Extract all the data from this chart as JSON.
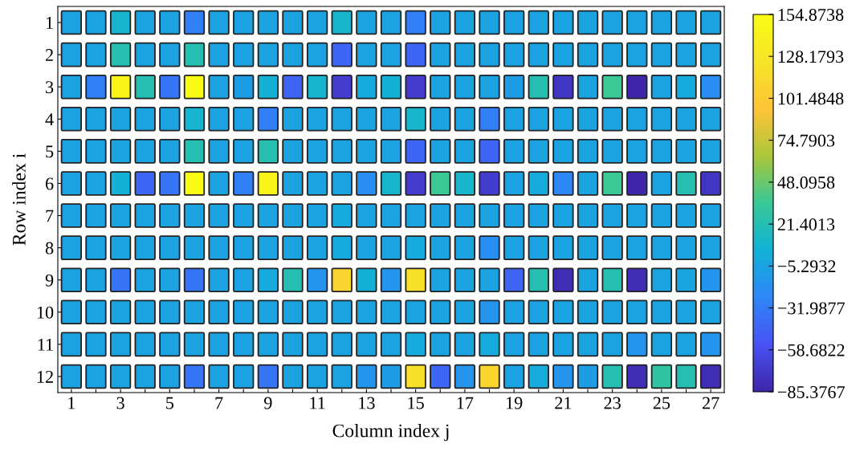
{
  "chart_data": {
    "type": "heatmap",
    "xlabel": "Column index j",
    "ylabel": "Row index i",
    "categories": [
      "1",
      null,
      "3",
      null,
      "5",
      null,
      "7",
      null,
      "9",
      null,
      "11",
      null,
      "13",
      null,
      "15",
      null,
      "17",
      null,
      "19",
      null,
      "21",
      null,
      "23",
      null,
      "25",
      null,
      "27"
    ],
    "y_categories": [
      "1",
      "2",
      "3",
      "4",
      "5",
      "6",
      "7",
      "8",
      "9",
      "10",
      "11",
      "12"
    ],
    "cells": [
      [
        -5,
        -5,
        8,
        -5,
        -5,
        -30,
        -5,
        -5,
        -5,
        -5,
        -5,
        10,
        -5,
        -5,
        -30,
        -5,
        -5,
        -5,
        -5,
        -5,
        -5,
        -5,
        -5,
        -5,
        -5,
        -5,
        -5
      ],
      [
        -5,
        -5,
        22,
        -5,
        -5,
        22,
        -5,
        -5,
        -5,
        -5,
        -5,
        -45,
        -5,
        -5,
        -45,
        -5,
        -5,
        -5,
        -5,
        -5,
        -5,
        -5,
        -5,
        -5,
        -5,
        -5,
        -5
      ],
      [
        -5,
        -30,
        145,
        22,
        -35,
        155,
        -5,
        -10,
        5,
        -45,
        8,
        -70,
        0,
        5,
        -70,
        -5,
        -5,
        -5,
        -10,
        22,
        -75,
        -5,
        35,
        -85,
        -5,
        0,
        -20
      ],
      [
        -5,
        -5,
        -5,
        -5,
        -5,
        8,
        -5,
        -5,
        -30,
        -5,
        -5,
        -5,
        -5,
        -5,
        10,
        -5,
        -5,
        -30,
        -5,
        -5,
        -5,
        -5,
        -5,
        -5,
        -5,
        -5,
        -5
      ],
      [
        -5,
        -5,
        -5,
        -5,
        -5,
        22,
        -5,
        -5,
        22,
        -5,
        -5,
        -5,
        -5,
        -5,
        -45,
        -5,
        -5,
        -45,
        -5,
        -5,
        -5,
        -5,
        -5,
        -5,
        -5,
        -5,
        -5
      ],
      [
        -5,
        -5,
        5,
        -45,
        -35,
        155,
        -5,
        -30,
        145,
        -5,
        -5,
        -5,
        -20,
        8,
        -70,
        35,
        10,
        -70,
        -5,
        0,
        -25,
        -5,
        35,
        -85,
        -5,
        22,
        -75
      ],
      [
        -5,
        -5,
        -5,
        -5,
        -5,
        -5,
        -5,
        -5,
        -5,
        -5,
        -5,
        0,
        -5,
        -5,
        -5,
        -5,
        -5,
        -5,
        -5,
        -5,
        -5,
        -5,
        -5,
        -5,
        -5,
        -5,
        -5
      ],
      [
        -5,
        -5,
        -5,
        -5,
        -5,
        -5,
        -5,
        -5,
        -5,
        -5,
        -5,
        0,
        -5,
        -5,
        0,
        -5,
        -5,
        -20,
        -5,
        -5,
        -5,
        -5,
        -5,
        -5,
        -5,
        -5,
        -5
      ],
      [
        -5,
        -5,
        -35,
        -5,
        -5,
        -35,
        -5,
        -5,
        0,
        22,
        -15,
        110,
        5,
        -15,
        120,
        -5,
        -5,
        -5,
        -45,
        22,
        -80,
        -5,
        22,
        -80,
        -5,
        -3,
        -15
      ],
      [
        -5,
        -5,
        -5,
        -5,
        -5,
        -5,
        -5,
        -5,
        -5,
        -5,
        -5,
        -5,
        -5,
        -5,
        -5,
        -5,
        -5,
        -15,
        -5,
        -5,
        -5,
        -5,
        -5,
        -5,
        -5,
        -5,
        -5
      ],
      [
        -5,
        -5,
        -5,
        -5,
        -5,
        -5,
        -5,
        -5,
        -5,
        -5,
        -5,
        -5,
        -5,
        -5,
        0,
        -5,
        -5,
        0,
        -5,
        -5,
        -5,
        -5,
        -5,
        -15,
        -5,
        -5,
        -15
      ],
      [
        -5,
        -5,
        -5,
        -5,
        -5,
        -35,
        -5,
        -5,
        -35,
        -5,
        -5,
        -5,
        -15,
        -10,
        120,
        -45,
        -15,
        110,
        -5,
        0,
        -15,
        -10,
        22,
        -80,
        30,
        22,
        -80
      ]
    ],
    "clim": [
      -85.3767,
      154.8738
    ],
    "cticks": [
      {
        "value": -85.3767,
        "label": "−85.3767"
      },
      {
        "value": -58.6822,
        "label": "−58.6822"
      },
      {
        "value": -31.9877,
        "label": "−31.9877"
      },
      {
        "value": -5.2932,
        "label": "−5.2932"
      },
      21.4013,
      48.0958,
      74.7903,
      101.4848,
      128.1793,
      154.8738
    ]
  }
}
